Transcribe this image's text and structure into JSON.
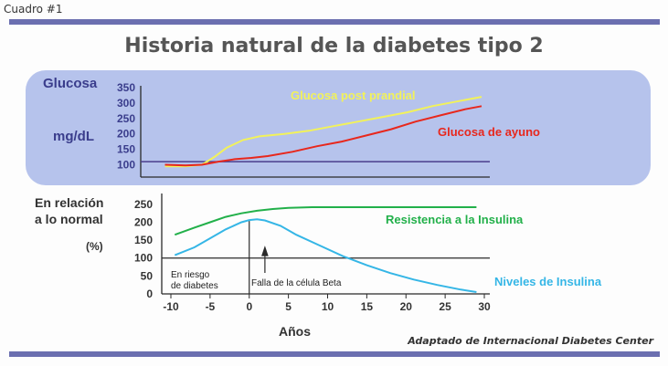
{
  "header": {
    "label": "Cuadro #1"
  },
  "title": "Historia natural de la diabetes tipo 2",
  "credit": "Adaptado de Internacional Diabetes Center",
  "colors": {
    "rule": "#6b6fb0",
    "panel": "#b6c3ec",
    "axis_text": "#3a3d8c",
    "yellow": "#f2f25a",
    "red": "#e8271c",
    "green": "#22b04a",
    "cyan": "#35b6e6",
    "axis": "#2a2a2a"
  },
  "chart_data": [
    {
      "type": "line",
      "ylabel_top": "Glucosa",
      "ylabel_unit": "mg/dL",
      "yticks": [
        350,
        300,
        250,
        200,
        150,
        100
      ],
      "ylim": [
        60,
        350
      ],
      "xlim": [
        -10,
        30
      ],
      "reference_line": 110,
      "series": [
        {
          "name": "Glucosa post prandial",
          "color": "#f2f25a",
          "x": [
            -9.5,
            -7,
            -5,
            -3.5,
            -2,
            0,
            2,
            5,
            8,
            11,
            14,
            17,
            20,
            23,
            26,
            29
          ],
          "y": [
            95,
            95,
            100,
            125,
            155,
            180,
            192,
            200,
            210,
            225,
            240,
            255,
            270,
            290,
            305,
            320
          ]
        },
        {
          "name": "Glucosa de ayuno",
          "color": "#e8271c",
          "x": [
            -9.5,
            -7,
            -5,
            -3,
            -1,
            1,
            3,
            6,
            9,
            12,
            15,
            18,
            21,
            24,
            27,
            29
          ],
          "y": [
            100,
            98,
            100,
            110,
            118,
            122,
            128,
            142,
            160,
            175,
            195,
            215,
            240,
            260,
            280,
            290
          ]
        }
      ]
    },
    {
      "type": "line",
      "ylabel_top": "En relación a lo normal",
      "ylabel_unit": "(%)",
      "yticks": [
        250,
        200,
        150,
        100,
        50,
        0
      ],
      "ylim": [
        0,
        270
      ],
      "xticks": [
        -10,
        -5,
        0,
        5,
        10,
        15,
        20,
        25,
        30
      ],
      "xlabel": "Años",
      "xlim": [
        -11,
        31
      ],
      "reference_line": 100,
      "series": [
        {
          "name": "Resistencia a la Insulina",
          "color": "#22b04a",
          "x": [
            -9.5,
            -7,
            -5,
            -3,
            -1,
            1,
            3,
            5,
            8,
            12,
            18,
            24,
            29
          ],
          "y": [
            165,
            185,
            200,
            215,
            225,
            232,
            237,
            240,
            242,
            242,
            242,
            242,
            242
          ]
        },
        {
          "name": "Niveles de Insulina",
          "color": "#35b6e6",
          "x": [
            -9.5,
            -7,
            -5,
            -3,
            -1,
            0,
            1,
            2,
            4,
            6,
            9,
            12,
            15,
            18,
            21,
            24,
            27,
            29
          ],
          "y": [
            108,
            130,
            155,
            180,
            200,
            206,
            208,
            205,
            190,
            165,
            135,
            105,
            80,
            58,
            40,
            25,
            12,
            5
          ]
        }
      ],
      "annotations": {
        "risk_label": [
          "En riesgo",
          "de diabetes"
        ],
        "beta_label": "Falla de la célula Beta"
      }
    }
  ]
}
